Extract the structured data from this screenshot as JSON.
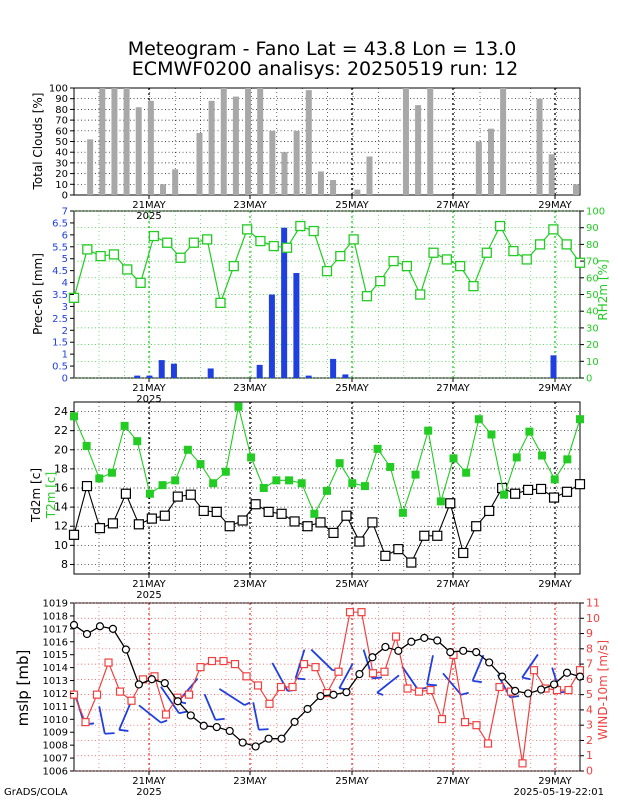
{
  "title": {
    "line1": "Meteogram - Fano Lat = 43.8 Lon = 13.0",
    "line2": "ECMWF0200 analisys: 20250519 run: 12"
  },
  "footer": {
    "left": "GrADS/COLA",
    "right": "2025-05-19-22:01"
  },
  "x_axis": {
    "ticks": [
      "21MAY",
      "23MAY",
      "25MAY",
      "27MAY",
      "29MAY"
    ],
    "year_label": "2025"
  },
  "colors": {
    "blue": "#1f3fe0",
    "green": "#22cc22",
    "red": "#f04040",
    "gray": "#a8a8a8",
    "black": "#000000"
  },
  "chart_data": [
    {
      "type": "bar",
      "name": "clouds",
      "ylabel": "Total Clouds [%]",
      "ylim": [
        0,
        100
      ],
      "yticks": [
        "0",
        "10",
        "20",
        "30",
        "40",
        "50",
        "60",
        "70",
        "80",
        "90",
        "100"
      ],
      "values": [
        0,
        52,
        100,
        100,
        100,
        82,
        88,
        10,
        24,
        0,
        58,
        88,
        100,
        92,
        100,
        100,
        60,
        40,
        60,
        98,
        22,
        14,
        0,
        5,
        36,
        0,
        0,
        100,
        84,
        100,
        0,
        0,
        0,
        50,
        62,
        100,
        0,
        0,
        90,
        38,
        0,
        10
      ]
    },
    {
      "type": "bar",
      "name": "precip",
      "ylabel": "Prec-6h [mm]",
      "y2label": "RH2m [%]",
      "ylim": [
        0,
        7
      ],
      "yticks": [
        "0",
        "0.5",
        "1",
        "1.5",
        "2",
        "2.5",
        "3",
        "3.5",
        "4",
        "4.5",
        "5",
        "5.5",
        "6",
        "6.5",
        "7"
      ],
      "y2lim": [
        0,
        100
      ],
      "y2ticks": [
        "0",
        "10",
        "20",
        "30",
        "40",
        "50",
        "60",
        "70",
        "80",
        "90",
        "100"
      ],
      "values": [
        0,
        0,
        0,
        0,
        0,
        0.1,
        0.1,
        0.75,
        0.6,
        0,
        0,
        0.4,
        0,
        0,
        0,
        0.55,
        3.5,
        6.3,
        4.4,
        0.1,
        0,
        0.8,
        0.15,
        0,
        0,
        0,
        0,
        0,
        0,
        0,
        0,
        0,
        0,
        0,
        0,
        0,
        0,
        0,
        0,
        0.95,
        0,
        0
      ],
      "rh": [
        48,
        77,
        73,
        74,
        65,
        57,
        85,
        81,
        72,
        81,
        83,
        45,
        67,
        89,
        82,
        79,
        78,
        91,
        88,
        64,
        73,
        83,
        49,
        58,
        70,
        67,
        50,
        75,
        71,
        67,
        55,
        75,
        91,
        76,
        71,
        80,
        89,
        80,
        69
      ]
    },
    {
      "type": "line",
      "name": "temps",
      "ylabel": "Td2m [c]",
      "ylabel2": "T2m [c]",
      "ylim": [
        7,
        25
      ],
      "yticks": [
        "8",
        "10",
        "12",
        "14",
        "16",
        "18",
        "20",
        "22",
        "24"
      ],
      "t2m": [
        23.5,
        20.4,
        17.0,
        17.6,
        22.5,
        20.9,
        15.4,
        16.3,
        16.8,
        20.0,
        18.5,
        16.5,
        17.7,
        24.5,
        19.2,
        16.0,
        16.8,
        16.8,
        16.5,
        13.3,
        15.7,
        18.6,
        16.5,
        16.2,
        20.1,
        18.2,
        13.4,
        17.4,
        22.0,
        14.6,
        19.1,
        17.6,
        23.2,
        21.6,
        15.3,
        19.2,
        21.9,
        19.4,
        16.9,
        19.0,
        23.2
      ],
      "td2m": [
        11.1,
        16.2,
        11.8,
        12.3,
        15.4,
        12.2,
        12.8,
        13.1,
        15.1,
        15.3,
        13.6,
        13.5,
        12.0,
        12.6,
        14.3,
        13.5,
        13.3,
        12.5,
        12.0,
        12.4,
        11.3,
        13.1,
        10.4,
        12.4,
        8.9,
        9.6,
        8.2,
        11.0,
        11.0,
        14.4,
        9.2,
        12.0,
        13.6,
        16.0,
        15.4,
        15.8,
        15.9,
        15.0,
        15.6,
        16.4
      ]
    },
    {
      "type": "line",
      "name": "pressure",
      "ylabel": "mslp [mb]",
      "y2label": "WIND-10m [m/s]",
      "ylim": [
        1006,
        1019
      ],
      "yticks": [
        "1006",
        "1007",
        "1008",
        "1009",
        "1010",
        "1011",
        "1012",
        "1013",
        "1014",
        "1015",
        "1016",
        "1017",
        "1018",
        "1019"
      ],
      "y2lim": [
        0,
        11
      ],
      "y2ticks": [
        "0",
        "1",
        "2",
        "3",
        "4",
        "5",
        "6",
        "7",
        "8",
        "9",
        "10",
        "11"
      ],
      "mslp": [
        1017.3,
        1016.6,
        1017.2,
        1017.0,
        1015.4,
        1012.7,
        1013.1,
        1012.8,
        1011.4,
        1010.3,
        1009.5,
        1009.4,
        1009.1,
        1008.2,
        1007.9,
        1008.5,
        1008.5,
        1009.8,
        1010.8,
        1011.8,
        1011.9,
        1012.1,
        1013.5,
        1014.8,
        1015.6,
        1015.3,
        1016.0,
        1016.3,
        1016.1,
        1015.2,
        1015.3,
        1015.2,
        1014.4,
        1013.3,
        1012.2,
        1012.0,
        1012.3,
        1012.7,
        1013.6,
        1013.3
      ],
      "wind": [
        5.0,
        3.2,
        5.0,
        7.1,
        5.2,
        4.6,
        6.0,
        6.2,
        3.7,
        4.8,
        5.0,
        6.8,
        7.2,
        7.2,
        7.0,
        6.2,
        5.6,
        4.4,
        5.5,
        5.5,
        7.0,
        6.8,
        5.1,
        6.5,
        10.4,
        10.4,
        6.4,
        6.5,
        8.8,
        5.4,
        5.2,
        5.3,
        3.4,
        7.6,
        3.2,
        3.0,
        1.8,
        5.5,
        5.2,
        0.5,
        6.6,
        5.4,
        5.3,
        5.3,
        6.6
      ]
    }
  ]
}
